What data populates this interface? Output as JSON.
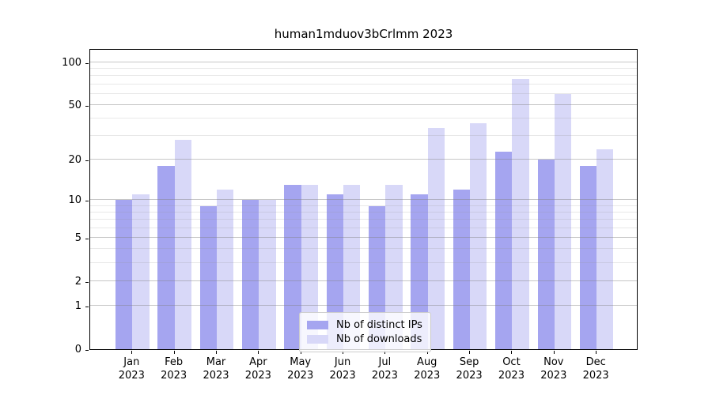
{
  "title": "human1mduov3bCrlmm 2023",
  "legend": {
    "items": [
      {
        "label": "Nb of distinct IPs",
        "color": "#a5a5f0"
      },
      {
        "label": "Nb of downloads",
        "color": "#d8d8f8"
      }
    ]
  },
  "x_axis": {
    "months": [
      "Jan",
      "Feb",
      "Mar",
      "Apr",
      "May",
      "Jun",
      "Jul",
      "Aug",
      "Sep",
      "Oct",
      "Nov",
      "Dec"
    ],
    "year": "2023"
  },
  "y_axis": {
    "major_ticks": [
      100,
      50,
      20,
      10,
      5,
      2,
      1,
      0
    ],
    "minor_ticks": [
      3,
      4,
      6,
      7,
      8,
      9,
      30,
      40,
      60,
      70,
      80,
      90
    ],
    "scale": "log(1+v)"
  },
  "chart_data": {
    "type": "bar",
    "title": "human1mduov3bCrlmm 2023",
    "categories": [
      "Jan 2023",
      "Feb 2023",
      "Mar 2023",
      "Apr 2023",
      "May 2023",
      "Jun 2023",
      "Jul 2023",
      "Aug 2023",
      "Sep 2023",
      "Oct 2023",
      "Nov 2023",
      "Dec 2023"
    ],
    "series": [
      {
        "name": "Nb of distinct IPs",
        "color": "#a5a5f0",
        "values": [
          10,
          18,
          9,
          10,
          13,
          11,
          9,
          11,
          12,
          23,
          20,
          18
        ]
      },
      {
        "name": "Nb of downloads",
        "color": "#d8d8f8",
        "values": [
          11,
          28,
          12,
          10,
          13,
          13,
          13,
          34,
          37,
          76,
          60,
          24
        ]
      }
    ],
    "yscale": "log(1+v)",
    "ylim": [
      0,
      125
    ],
    "grid": true,
    "legend_position": "lower center"
  }
}
